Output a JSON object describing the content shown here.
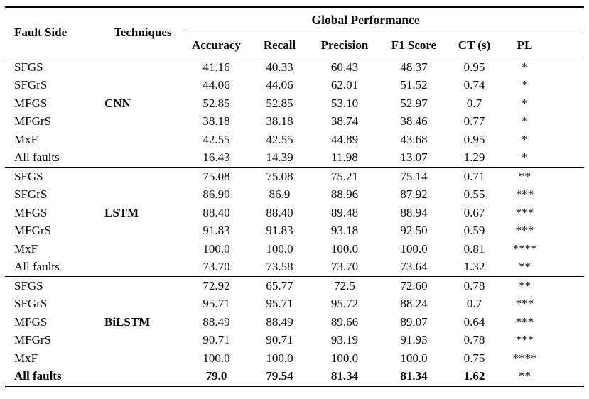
{
  "table": {
    "header": {
      "fault_side": "Fault Side",
      "techniques": "Techniques",
      "group": "Global Performance",
      "metrics": [
        "Accuracy",
        "Recall",
        "Precision",
        "F1 Score",
        "CT (s)",
        "PL"
      ]
    },
    "blocks": [
      {
        "technique": "CNN",
        "technique_row_index": 2,
        "rows": [
          {
            "cells": [
              "SFGS",
              "41.16",
              "40.33",
              "60.43",
              "48.37",
              "0.95",
              "*"
            ]
          },
          {
            "cells": [
              "SFGrS",
              "44.06",
              "44.06",
              "62.01",
              "51.52",
              "0.74",
              "*"
            ]
          },
          {
            "cells": [
              "MFGS",
              "52.85",
              "52.85",
              "53.10",
              "52.97",
              "0.7",
              "*"
            ]
          },
          {
            "cells": [
              "MFGrS",
              "38.18",
              "38.18",
              "38.74",
              "38.46",
              "0.77",
              "*"
            ]
          },
          {
            "cells": [
              "MxF",
              "42.55",
              "42.55",
              "44.89",
              "43.68",
              "0.95",
              "*"
            ]
          },
          {
            "cells": [
              "All faults",
              "16.43",
              "14.39",
              "11.98",
              "13.07",
              "1.29",
              "*"
            ]
          }
        ]
      },
      {
        "technique": "LSTM",
        "technique_row_index": 2,
        "rows": [
          {
            "cells": [
              "SFGS",
              "75.08",
              "75.08",
              "75.21",
              "75.14",
              "0.71",
              "**"
            ]
          },
          {
            "cells": [
              "SFGrS",
              "86.90",
              "86.9",
              "88.96",
              "87.92",
              "0.55",
              "***"
            ]
          },
          {
            "cells": [
              "MFGS",
              "88.40",
              "88.40",
              "89.48",
              "88.94",
              "0.67",
              "***"
            ]
          },
          {
            "cells": [
              "MFGrS",
              "91.83",
              "91.83",
              "93.18",
              "92.50",
              "0.59",
              "***"
            ]
          },
          {
            "cells": [
              "MxF",
              "100.0",
              "100.0",
              "100.0",
              "100.0",
              "0.81",
              "****"
            ]
          },
          {
            "cells": [
              "All faults",
              "73.70",
              "73.58",
              "73.70",
              "73.64",
              "1.32",
              "**"
            ]
          }
        ]
      },
      {
        "technique": "BiLSTM",
        "technique_row_index": 2,
        "rows": [
          {
            "cells": [
              "SFGS",
              "72.92",
              "65.77",
              "72.5",
              "72.60",
              "0.78",
              "**"
            ]
          },
          {
            "cells": [
              "SFGrS",
              "95.71",
              "95.71",
              "95.72",
              "88.24",
              "0.7",
              "***"
            ]
          },
          {
            "cells": [
              "MFGS",
              "88.49",
              "88.49",
              "89.66",
              "89.07",
              "0.64",
              "***"
            ]
          },
          {
            "cells": [
              "MFGrS",
              "90.71",
              "90.71",
              "93.19",
              "91.93",
              "0.78",
              "***"
            ]
          },
          {
            "cells": [
              "MxF",
              "100.0",
              "100.0",
              "100.0",
              "100.0",
              "0.75",
              "****"
            ]
          },
          {
            "cells": [
              "All faults",
              "79.0",
              "79.54",
              "81.34",
              "81.34",
              "1.62",
              "**"
            ],
            "bold": true
          }
        ]
      }
    ]
  }
}
